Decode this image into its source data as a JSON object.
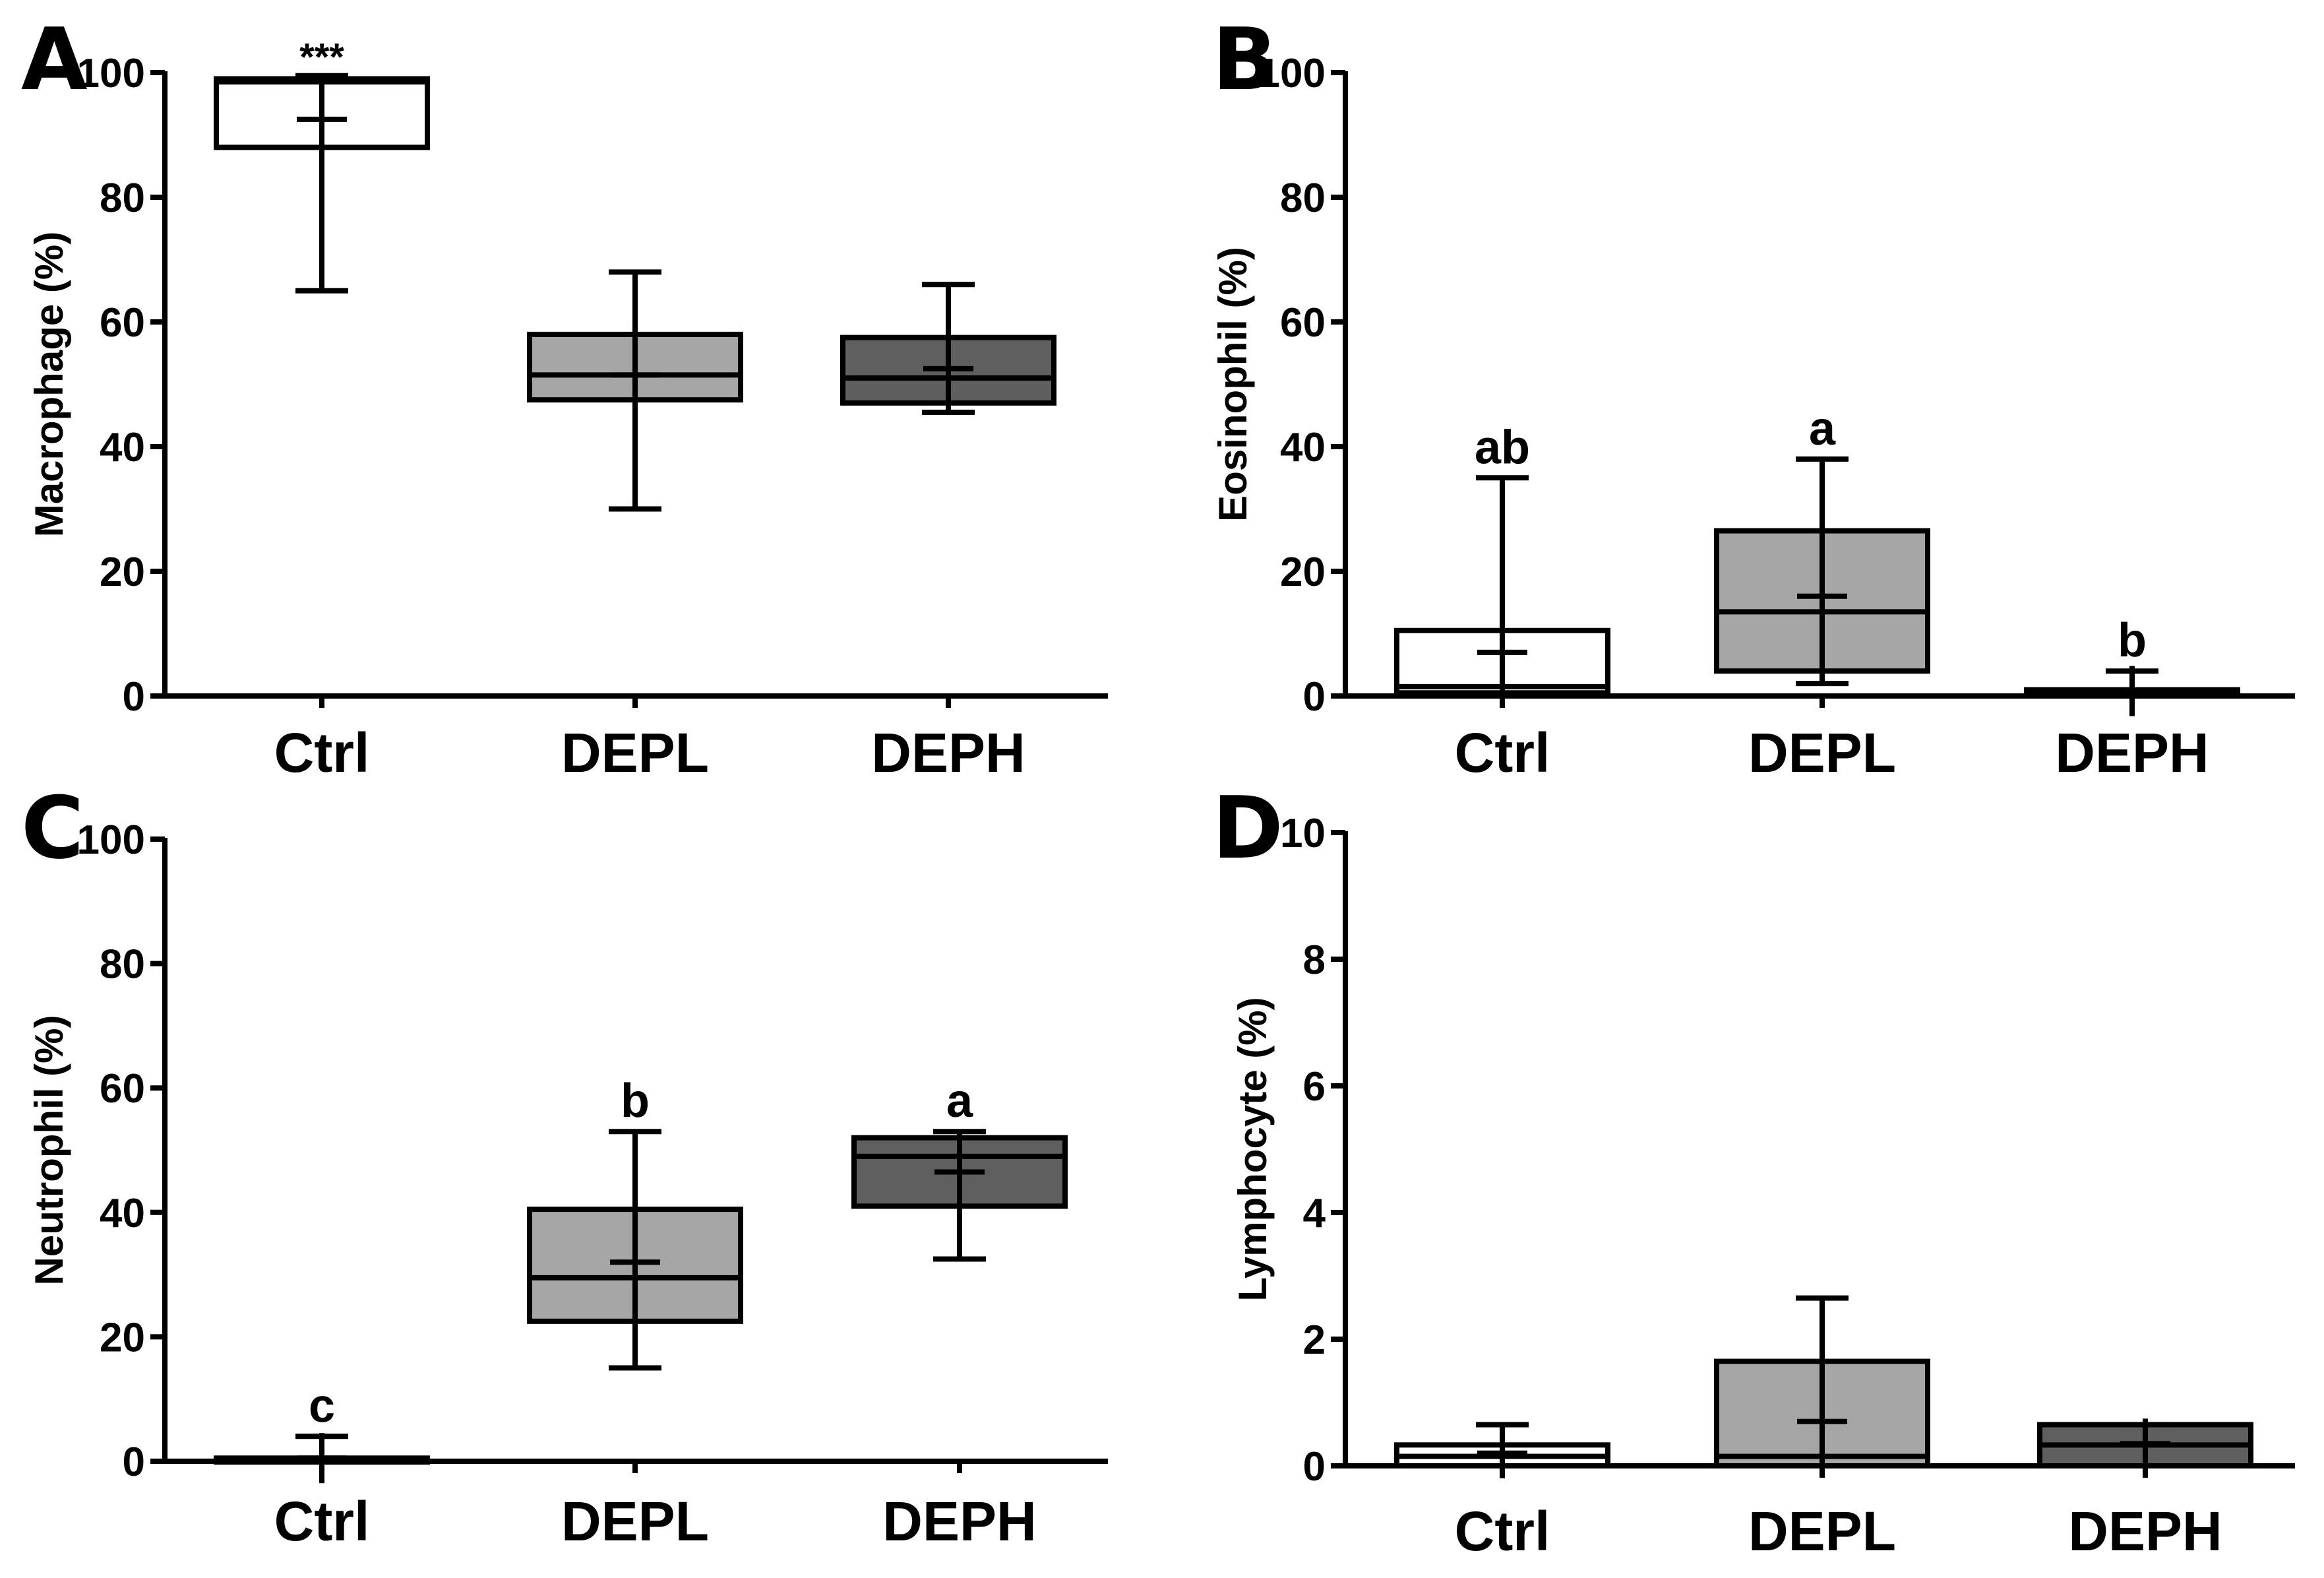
{
  "colors": {
    "axis": "#000000",
    "Ctrl": "#ffffff",
    "DEPL": "#a6a6a6",
    "DEPH": "#5f5f5f"
  },
  "chart_data": [
    {
      "panel": "A",
      "type": "box",
      "ylabel": "Macrophage (%)",
      "ylim": [
        0,
        100
      ],
      "yticks": [
        0,
        20,
        40,
        60,
        80,
        100
      ],
      "categories": [
        "Ctrl",
        "DEPL",
        "DEPH"
      ],
      "boxes": [
        {
          "group": "Ctrl",
          "min": 65,
          "q1": 88,
          "median": 98.5,
          "q3": 99,
          "max": 99.5,
          "mean": 92.5,
          "label": "***"
        },
        {
          "group": "DEPL",
          "min": 30,
          "q1": 47.5,
          "median": 51.5,
          "q3": 58,
          "max": 68,
          "mean": 51.5,
          "label": ""
        },
        {
          "group": "DEPH",
          "min": 45.5,
          "q1": 47,
          "median": 51,
          "q3": 57.5,
          "max": 66,
          "mean": 52.5,
          "label": ""
        }
      ]
    },
    {
      "panel": "B",
      "type": "box",
      "ylabel": "Eosinophil (%)",
      "ylim": [
        0,
        100
      ],
      "yticks": [
        0,
        20,
        40,
        60,
        80,
        100
      ],
      "categories": [
        "Ctrl",
        "DEPL",
        "DEPH"
      ],
      "boxes": [
        {
          "group": "Ctrl",
          "min": 0,
          "q1": 0.5,
          "median": 1.5,
          "q3": 10.5,
          "max": 35,
          "mean": 7,
          "label": "ab"
        },
        {
          "group": "DEPL",
          "min": 2,
          "q1": 4,
          "median": 13.5,
          "q3": 26.5,
          "max": 38,
          "mean": 16,
          "label": "a"
        },
        {
          "group": "DEPH",
          "min": 0,
          "q1": 0,
          "median": 0.5,
          "q3": 1,
          "max": 4,
          "mean": 0.8,
          "label": "b"
        }
      ]
    },
    {
      "panel": "C",
      "type": "box",
      "ylabel": "Neutrophil (%)",
      "ylim": [
        0,
        100
      ],
      "yticks": [
        0,
        20,
        40,
        60,
        80,
        100
      ],
      "categories": [
        "Ctrl",
        "DEPL",
        "DEPH"
      ],
      "boxes": [
        {
          "group": "Ctrl",
          "min": 0,
          "q1": 0,
          "median": 0.2,
          "q3": 0.5,
          "max": 4,
          "mean": 0.5,
          "label": "c"
        },
        {
          "group": "DEPL",
          "min": 15,
          "q1": 22.5,
          "median": 29.5,
          "q3": 40.5,
          "max": 53,
          "mean": 32,
          "label": "b"
        },
        {
          "group": "DEPH",
          "min": 32.5,
          "q1": 41,
          "median": 49,
          "q3": 52,
          "max": 53,
          "mean": 46.5,
          "label": "a"
        }
      ]
    },
    {
      "panel": "D",
      "type": "box",
      "ylabel": "Lymphocyte (%)",
      "ylim": [
        0,
        10
      ],
      "yticks": [
        0,
        2,
        4,
        6,
        8,
        10
      ],
      "categories": [
        "Ctrl",
        "DEPL",
        "DEPH"
      ],
      "boxes": [
        {
          "group": "Ctrl",
          "min": 0,
          "q1": 0,
          "median": 0.15,
          "q3": 0.33,
          "max": 0.65,
          "mean": 0.2,
          "label": ""
        },
        {
          "group": "DEPL",
          "min": 0,
          "q1": 0,
          "median": 0.15,
          "q3": 1.65,
          "max": 2.65,
          "mean": 0.7,
          "label": ""
        },
        {
          "group": "DEPH",
          "min": 0,
          "q1": 0,
          "median": 0.33,
          "q3": 0.65,
          "max": 0.65,
          "mean": 0.35,
          "label": ""
        }
      ]
    }
  ]
}
